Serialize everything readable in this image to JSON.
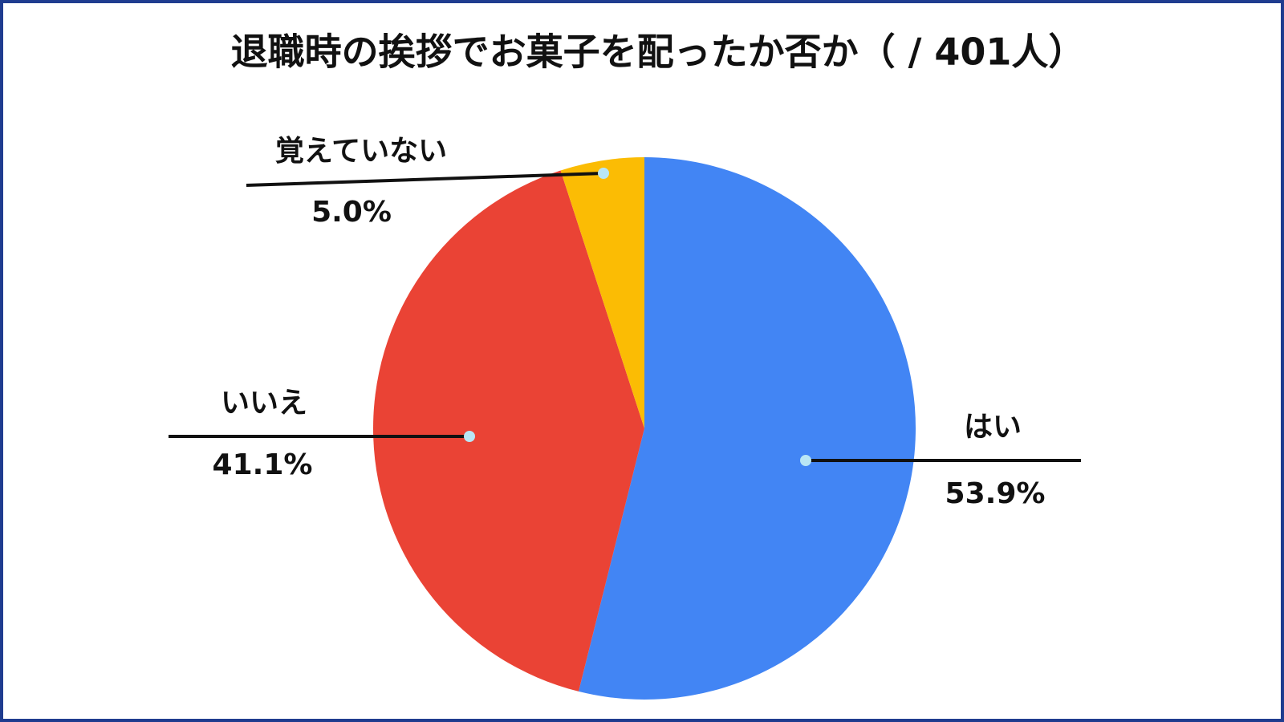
{
  "chart_data": {
    "type": "pie",
    "title": "退職時の挨拶でお菓子を配ったか否か（ / 401人）",
    "categories": [
      "はい",
      "いいえ",
      "覚えていない"
    ],
    "values": [
      53.9,
      41.1,
      5.0
    ],
    "value_labels": [
      "53.9%",
      "41.1%",
      "5.0%"
    ],
    "colors": [
      "#4285f4",
      "#ea4335",
      "#fbbc04"
    ]
  }
}
